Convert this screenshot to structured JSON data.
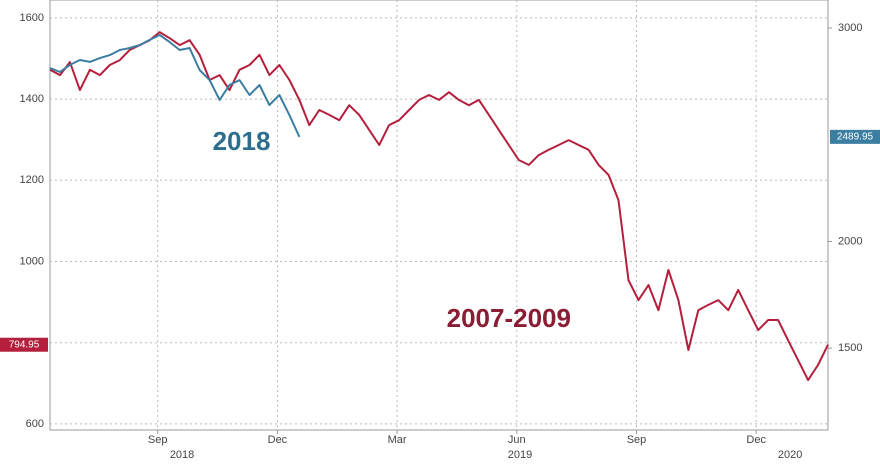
{
  "chart_data": {
    "type": "line",
    "xlim": [
      -2.7,
      16.8
    ],
    "xticks": [
      {
        "value": 0,
        "label": "Sep"
      },
      {
        "value": 3,
        "label": "Dec"
      },
      {
        "value": 6,
        "label": "Mar"
      },
      {
        "value": 9,
        "label": "Jun"
      },
      {
        "value": 12,
        "label": "Sep"
      },
      {
        "value": 15,
        "label": "Dec"
      }
    ],
    "year_labels": [
      {
        "value": 0.61,
        "label": "2018"
      },
      {
        "value": 9.08,
        "label": "2019"
      },
      {
        "value": 15.85,
        "label": "2020"
      }
    ],
    "ylim": [
      585,
      1644
    ],
    "yticks": [
      600,
      800,
      1000,
      1200,
      1400,
      1600
    ],
    "y2lim": [
      1117,
      3131
    ],
    "y2ticks": [
      1500,
      2000,
      3000
    ],
    "grid": true,
    "annotations": [
      {
        "text": "2018",
        "color": "#2c6e8e",
        "x": 2.1,
        "y": 1292
      },
      {
        "text": "2007-2009",
        "color": "#8a1c33",
        "x": 8.8,
        "y": 855
      }
    ],
    "series": [
      {
        "name": "2007-2009",
        "color": "#b31f3c",
        "end_label": "794.95",
        "x": [
          -2.7,
          -2.45,
          -2.2,
          -1.95,
          -1.7,
          -1.45,
          -1.2,
          -0.95,
          -0.7,
          -0.45,
          -0.2,
          0.05,
          0.3,
          0.55,
          0.8,
          1.05,
          1.3,
          1.55,
          1.8,
          2.05,
          2.3,
          2.55,
          2.8,
          3.05,
          3.3,
          3.55,
          3.8,
          4.05,
          4.3,
          4.55,
          4.8,
          5.05,
          5.3,
          5.55,
          5.8,
          6.05,
          6.3,
          6.55,
          6.8,
          7.05,
          7.3,
          7.55,
          7.8,
          8.05,
          8.3,
          8.55,
          8.8,
          9.05,
          9.3,
          9.55,
          9.8,
          10.05,
          10.3,
          10.55,
          10.8,
          11.05,
          11.3,
          11.55,
          11.8,
          12.05,
          12.3,
          12.55,
          12.8,
          13.05,
          13.3,
          13.55,
          13.8,
          14.05,
          14.3,
          14.55,
          14.8,
          15.05,
          15.3,
          15.55,
          15.8,
          16.05,
          16.3,
          16.55,
          16.8
        ],
        "values": [
          1472,
          1459,
          1491,
          1422,
          1472,
          1459,
          1484,
          1496,
          1521,
          1533,
          1545,
          1565,
          1550,
          1533,
          1545,
          1509,
          1447,
          1459,
          1422,
          1472,
          1484,
          1509,
          1459,
          1484,
          1447,
          1398,
          1336,
          1373,
          1361,
          1348,
          1385,
          1361,
          1324,
          1287,
          1336,
          1348,
          1373,
          1398,
          1410,
          1398,
          1417,
          1398,
          1385,
          1398,
          1361,
          1324,
          1287,
          1250,
          1238,
          1262,
          1275,
          1287,
          1299,
          1287,
          1275,
          1238,
          1213,
          1151,
          954,
          905,
          942,
          880,
          979,
          905,
          782,
          880,
          893,
          905,
          880,
          930,
          880,
          831,
          856,
          856,
          806,
          757,
          708,
          745,
          795
        ]
      },
      {
        "name": "2018",
        "color": "#3b7ea2",
        "axis": "y2",
        "end_label": "2489.95",
        "x": [
          -2.7,
          -2.45,
          -2.2,
          -1.95,
          -1.7,
          -1.45,
          -1.2,
          -0.95,
          -0.7,
          -0.45,
          -0.2,
          0.05,
          0.3,
          0.55,
          0.8,
          1.05,
          1.3,
          1.55,
          1.8,
          2.05,
          2.3,
          2.55,
          2.8,
          3.05,
          3.3,
          3.55
        ],
        "values": [
          2812,
          2794,
          2827,
          2850,
          2841,
          2859,
          2873,
          2897,
          2906,
          2920,
          2944,
          2967,
          2934,
          2897,
          2906,
          2803,
          2756,
          2663,
          2733,
          2756,
          2686,
          2733,
          2639,
          2686,
          2592,
          2490
        ]
      }
    ]
  }
}
